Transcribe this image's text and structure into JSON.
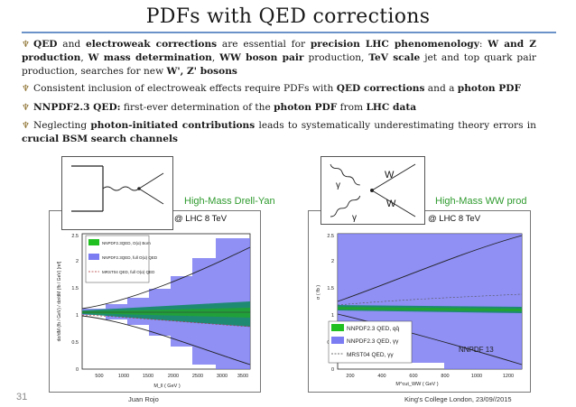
{
  "title": "PDFs with QED corrections",
  "bullets": [
    {
      "parts": [
        [
          "b",
          "QED"
        ],
        [
          "t",
          " and "
        ],
        [
          "b",
          "electroweak corrections"
        ],
        [
          "t",
          " are essential for    "
        ],
        [
          "b",
          "precision LHC phenomenology"
        ],
        [
          "t",
          ": "
        ],
        [
          "b",
          "W and Z production"
        ],
        [
          "t",
          ", "
        ],
        [
          "b",
          "W mass determination"
        ],
        [
          "t",
          ", "
        ],
        [
          "b",
          "WW boson pair"
        ],
        [
          "t",
          " production, "
        ],
        [
          "b",
          "TeV scale"
        ],
        [
          "t",
          " jet and top quark pair production, searches for new "
        ],
        [
          "b",
          "W', Z' bosons"
        ]
      ]
    },
    {
      "parts": [
        [
          "t",
          "Consistent inclusion of electroweak effects require PDFs with "
        ],
        [
          "b",
          "QED corrections"
        ],
        [
          "t",
          " and a "
        ],
        [
          "b",
          "photon PDF"
        ]
      ]
    },
    {
      "parts": [
        [
          "b",
          "NNPDF2.3 QED:"
        ],
        [
          "t",
          " first-ever determination of the "
        ],
        [
          "b",
          "photon PDF"
        ],
        [
          "t",
          " from "
        ],
        [
          "b",
          "LHC data"
        ]
      ]
    },
    {
      "parts": [
        [
          "t",
          "Neglecting "
        ],
        [
          "b",
          "photon-initiated contributions"
        ],
        [
          "t",
          " leads to systematically underestimating theory errors in "
        ],
        [
          "b",
          "crucial BSM search channels"
        ]
      ]
    }
  ],
  "captions": {
    "left": "High-Mass Drell-Yan",
    "right": "High-Mass WW prod"
  },
  "lhc_label": "@ LHC 8 TeV",
  "left_plot": {
    "ylabel": "dσ/dM (fb / GeV) / dσ/dM (fb / GeV) [ref]",
    "xlabel": "M_ll ( GeV )",
    "xticks": [
      "500",
      "1000",
      "1500",
      "2000",
      "2500",
      "3000",
      "3500"
    ],
    "yticks": [
      "0",
      "0.5",
      "1",
      "1.5",
      "2",
      "2.5"
    ],
    "legend": [
      "NNPDF2.3QED, O(α) Born",
      "NNPDF2.3QED, full O(α) QED",
      "MRST04 QED, full O(α) QED"
    ]
  },
  "right_plot": {
    "ylabel": "σ ( fb )",
    "xlabel": "M^cut_WW ( GeV )",
    "xticks": [
      "200",
      "400",
      "600",
      "800",
      "1000",
      "1200"
    ],
    "yticks": [
      "0",
      "0.5",
      "1",
      "1.5",
      "2",
      "2.5"
    ],
    "legend": [
      "NNPDF2.3 QED, qq̄",
      "NNPDF2.3 QED, γγ",
      "MRST04 QED, γγ"
    ],
    "tag": "NNPDF 13"
  },
  "diagram_labels": {
    "w1": "W",
    "w2": "W",
    "g1": "γ",
    "g2": "γ"
  },
  "footer": {
    "left": "Juan Rojo",
    "right": "King's College London, 23/09//2015"
  },
  "page_number": "31",
  "colors": {
    "band_blue": "#7b7bf2",
    "band_teal": "#1f8a72",
    "green": "#20c020",
    "rule": "#6b93c9",
    "caption": "#2e9a2e"
  }
}
